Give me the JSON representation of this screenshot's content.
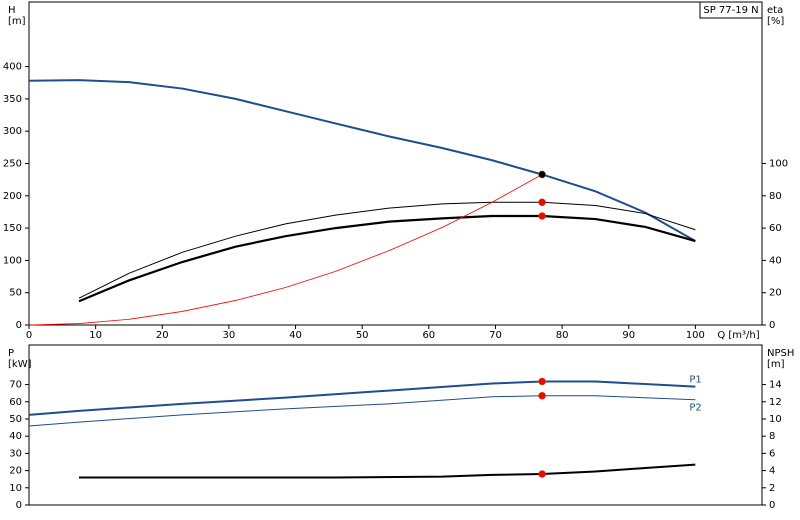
{
  "chart_data": [
    {
      "type": "line",
      "legend_box": "SP 77-19 N",
      "ylabel": [
        "H",
        "[m]"
      ],
      "y2label": [
        "eta",
        "[%]"
      ],
      "xlabel": "Q [m³/h]",
      "xlim": [
        0,
        110
      ],
      "xticks": [
        0,
        10,
        20,
        30,
        40,
        50,
        60,
        70,
        80,
        90,
        100
      ],
      "ylim": [
        0,
        500
      ],
      "yticks": [
        0,
        50,
        100,
        150,
        200,
        250,
        300,
        350,
        400
      ],
      "y2lim": [
        0,
        200
      ],
      "y2ticks": [
        0,
        20,
        40,
        60,
        80,
        100
      ],
      "duty_x": 77,
      "series": [
        {
          "color": "#1f4e8c",
          "line_width": 2,
          "marker_color": "#ffd700",
          "x": [
            0,
            7.5,
            15,
            23,
            31,
            38.5,
            46,
            54,
            62,
            69.5,
            77,
            85,
            92.5,
            100
          ],
          "values": [
            378,
            379,
            376,
            366,
            350,
            331,
            312,
            292,
            274,
            255,
            233,
            207,
            174,
            130
          ]
        },
        {
          "color": "#000000",
          "line_width": 1,
          "axis": "y2",
          "marker_color": "#ff0000",
          "x": [
            7.5,
            15,
            23,
            31,
            38.5,
            46,
            54,
            62,
            69.5,
            77,
            85,
            92.5,
            100
          ],
          "values": [
            16.6,
            32,
            45,
            55,
            62.6,
            68,
            72.4,
            75,
            76,
            76,
            74,
            69,
            59
          ]
        },
        {
          "color": "#000000",
          "line_width": 2.2,
          "axis": "y2",
          "marker_color": "#ff0000",
          "x": [
            7.5,
            15,
            23,
            31,
            38.5,
            46,
            54,
            62,
            69.5,
            77,
            85,
            92.5,
            100
          ],
          "values": [
            14.7,
            27.6,
            39,
            48.5,
            55,
            60,
            64,
            66,
            67.5,
            67.5,
            65.6,
            60.7,
            52
          ]
        },
        {
          "color": "#ff0000",
          "line_width": 0.8,
          "x": [
            0,
            7.5,
            15,
            23,
            31,
            38.5,
            46,
            54,
            62,
            69.5,
            77
          ],
          "values": [
            0,
            2.2,
            8.8,
            21,
            38,
            58,
            83,
            115,
            151,
            190,
            233
          ]
        }
      ]
    },
    {
      "type": "line",
      "ylabel": [
        "P",
        "[kW]"
      ],
      "y2label": [
        "NPSH",
        "[m]"
      ],
      "xlim": [
        0,
        110
      ],
      "ylim": [
        0,
        93
      ],
      "yticks": [
        0,
        10,
        20,
        30,
        40,
        50,
        60,
        70
      ],
      "y2lim": [
        0,
        18.6
      ],
      "y2ticks": [
        0,
        2,
        4,
        6,
        8,
        10,
        12,
        14
      ],
      "duty_x": 77,
      "series": [
        {
          "name": "P1",
          "color": "#1f4e8c",
          "line_width": 2,
          "marker_color": "#ff0000",
          "x": [
            0,
            7.5,
            23,
            38.5,
            54,
            69.5,
            77,
            85,
            100
          ],
          "values": [
            52.4,
            54.7,
            58.8,
            62.4,
            66.5,
            70.6,
            71.8,
            71.8,
            68.8
          ]
        },
        {
          "name": "P2",
          "color": "#1f4e8c",
          "line_width": 1,
          "marker_color": "#ff0000",
          "x": [
            0,
            7.5,
            23,
            38.5,
            54,
            69.5,
            77,
            85,
            100
          ],
          "values": [
            45.9,
            48.2,
            52.4,
            55.9,
            58.8,
            62.9,
            63.5,
            63.5,
            61.2
          ]
        },
        {
          "color": "#000000",
          "line_width": 2,
          "axis": "y2",
          "marker_color": "#ff0000",
          "x": [
            7.5,
            23,
            46,
            62,
            69.5,
            77,
            85,
            92.5,
            100
          ],
          "values": [
            3.2,
            3.2,
            3.2,
            3.3,
            3.5,
            3.6,
            3.9,
            4.3,
            4.7
          ]
        }
      ]
    }
  ]
}
